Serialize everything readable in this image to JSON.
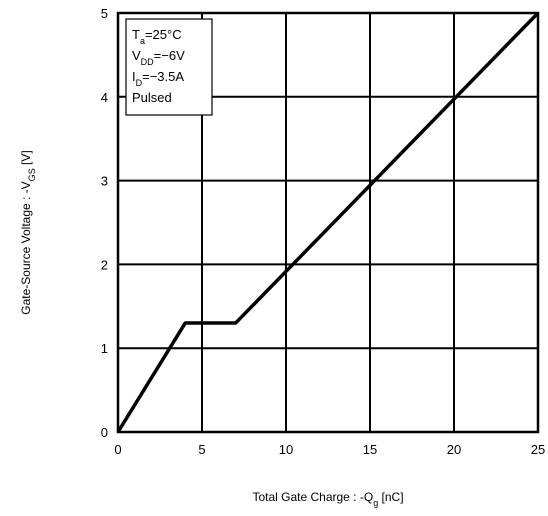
{
  "chart_data": {
    "type": "line",
    "title": "",
    "xlabel": "Total Gate Charge : -Q",
    "xlabel_sub": "g",
    "xlabel_unit": " [nC]",
    "ylabel": "Gate-Source Voltage : -V",
    "ylabel_sub": "GS",
    "ylabel_unit": " [V]",
    "xlim": [
      0,
      25
    ],
    "ylim": [
      0,
      5
    ],
    "xticks": [
      0,
      5,
      10,
      15,
      20,
      25
    ],
    "yticks": [
      0,
      1,
      2,
      3,
      4,
      5
    ],
    "grid": true,
    "line_color": "#000000",
    "series": [
      {
        "x": [
          0,
          4,
          7,
          25
        ],
        "y": [
          0,
          1.3,
          1.3,
          5
        ]
      }
    ],
    "annotation": {
      "placement": "top-left",
      "lines": [
        {
          "main": "T",
          "sub": "a",
          "rest": "=25°C"
        },
        {
          "main": "V",
          "sub": "DD",
          "rest": "=−6V"
        },
        {
          "main": "I",
          "sub": "D",
          "rest": "=−3.5A"
        },
        {
          "main": "Pulsed",
          "sub": "",
          "rest": ""
        }
      ]
    }
  }
}
